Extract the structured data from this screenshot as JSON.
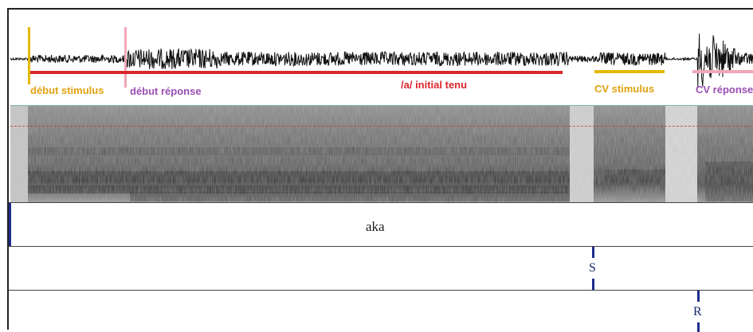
{
  "colors": {
    "stimulus_yellow": "#e5b80b",
    "response_pink": "#f3a6b8",
    "initial_red": "#d9262c",
    "label_purple": "#9b4fb3",
    "label_orange": "#e0a20f",
    "boundary_blue": "#1f2c8c"
  },
  "waveform_labels": {
    "debut_stimulus": "début stimulus",
    "debut_reponse": "début réponse",
    "a_initial": "/a/ initial tenu",
    "cv_stimulus": "CV stimulus",
    "cv_reponse": "CV réponse"
  },
  "tiers": {
    "word": "aka",
    "stimulus_marker": "S",
    "response_marker": "R"
  }
}
